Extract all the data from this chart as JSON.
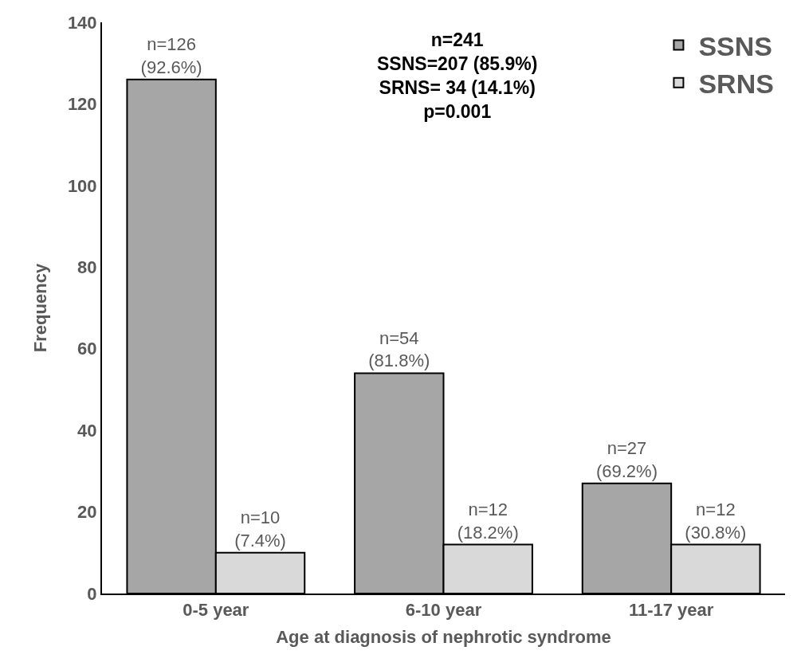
{
  "chart_data": {
    "type": "bar",
    "xlabel": "Age at diagnosis of nephrotic syndrome",
    "ylabel": "Frequency",
    "categories": [
      "0-5 year",
      "6-10 year",
      "11-17 year"
    ],
    "series": [
      {
        "name": "SSNS",
        "color": "#a6a6a6",
        "values": [
          126,
          54,
          27
        ],
        "value_labels": [
          "n=126\n(92.6%)",
          "n=54\n(81.8%)",
          "n=27\n(69.2%)"
        ]
      },
      {
        "name": "SRNS",
        "color": "#d9d9d9",
        "values": [
          10,
          12,
          12
        ],
        "value_labels": [
          "n=10\n(7.4%)",
          "n=12\n(18.2%)",
          "n=12\n(30.8%)"
        ]
      }
    ],
    "ylim": [
      0,
      140
    ],
    "yticks": [
      0,
      20,
      40,
      60,
      80,
      100,
      120,
      140
    ],
    "grid": false,
    "legend": "top right",
    "annotations": [
      "n=241\nSSNS=207 (85.9%)\nSRNS= 34 (14.1%)\np=0.001"
    ]
  }
}
